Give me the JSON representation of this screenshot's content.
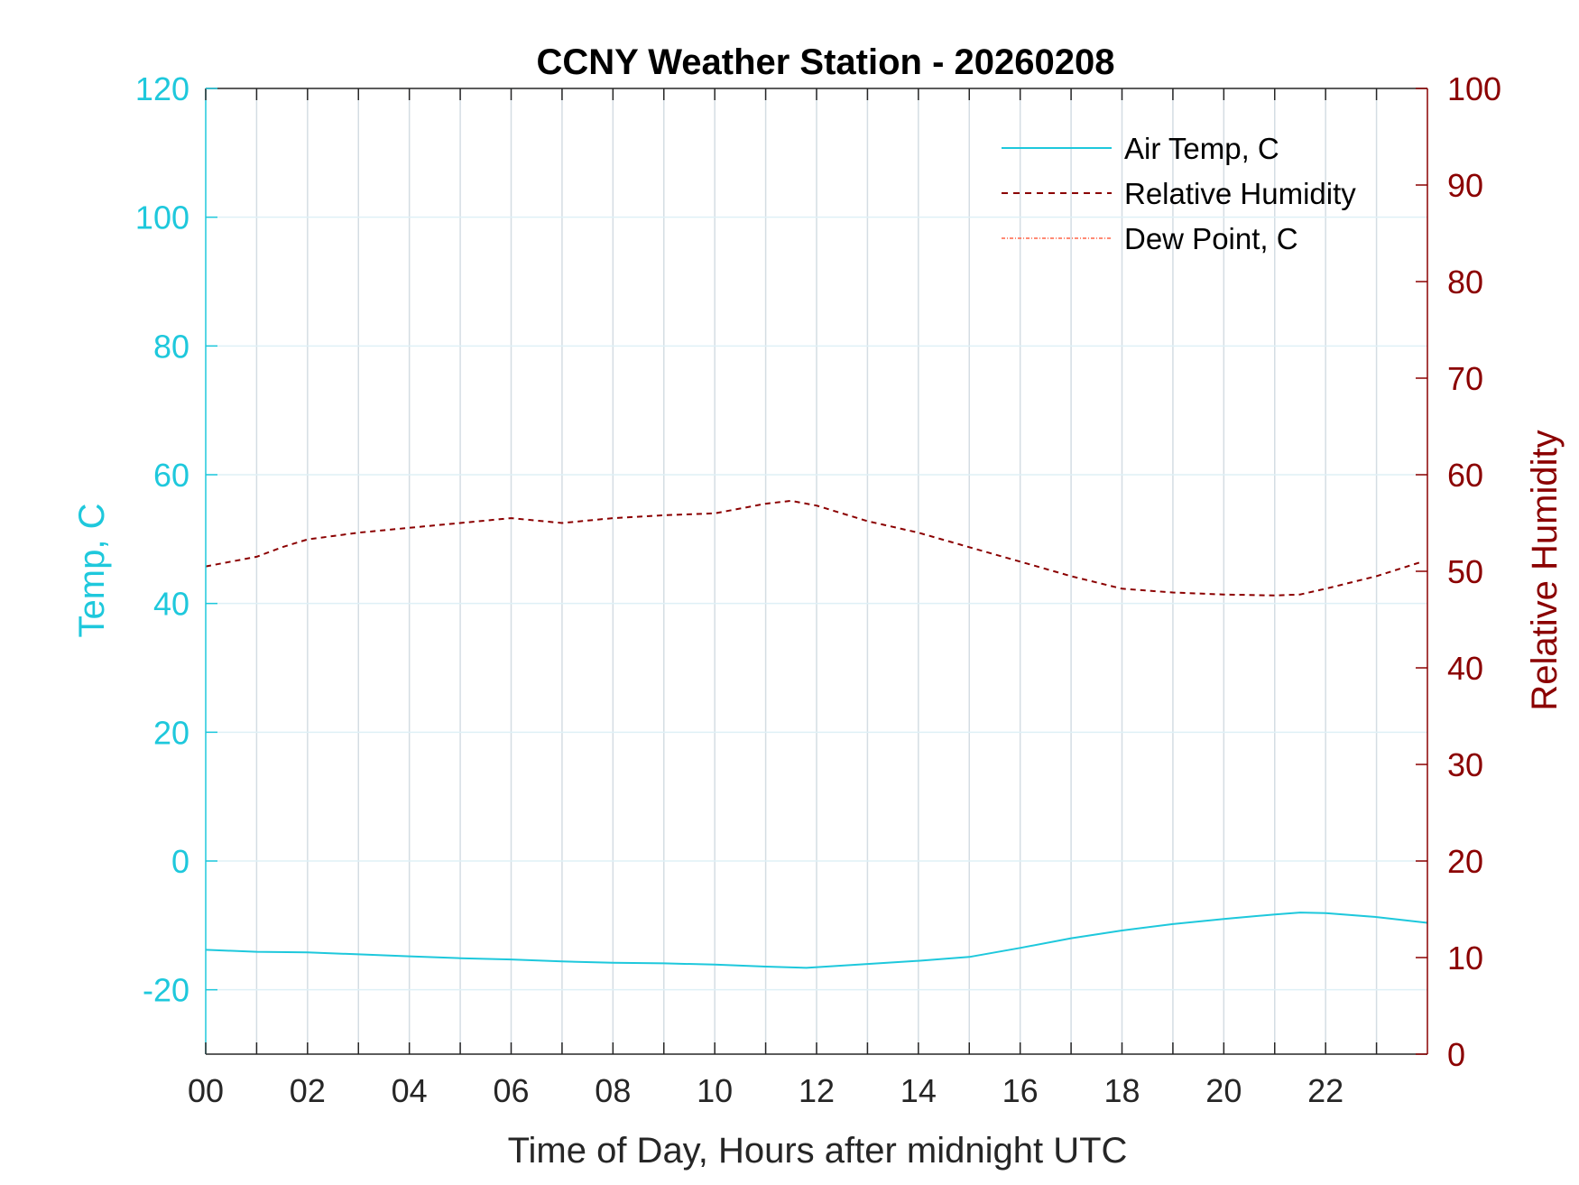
{
  "chart_data": {
    "type": "line",
    "title": "CCNY Weather Station - 20260208",
    "xlabel": "Time of Day, Hours after midnight UTC",
    "ylabel_left": "Temp, C",
    "ylabel_right": "Relative Humidity",
    "xlim": [
      0,
      24
    ],
    "ylim_left": [
      -30,
      120
    ],
    "ylim_right": [
      0,
      100
    ],
    "x_ticks": [
      0,
      2,
      4,
      6,
      8,
      10,
      12,
      14,
      16,
      18,
      20,
      22
    ],
    "x_tick_labels": [
      "00",
      "02",
      "04",
      "06",
      "08",
      "10",
      "12",
      "14",
      "16",
      "18",
      "20",
      "22"
    ],
    "y_left_ticks": [
      120,
      100,
      80,
      60,
      40,
      20,
      0,
      -20
    ],
    "y_left_tick_labels": [
      "120",
      "100",
      "80",
      "60",
      "40",
      "20",
      "0",
      "-20"
    ],
    "y_right_ticks": [
      100,
      90,
      80,
      70,
      60,
      50,
      40,
      30,
      20,
      10,
      0
    ],
    "y_right_tick_labels": [
      "100",
      "90",
      "80",
      "70",
      "60",
      "50",
      "40",
      "30",
      "20",
      "10",
      "0"
    ],
    "grid": true,
    "legend_position": "top-right",
    "colors": {
      "air_temp": "#1ec8dc",
      "relative_humidity": "#8b0000",
      "dew_point": "#ff6347",
      "left_axis": "#1ec8dc",
      "right_axis": "#8b0000",
      "grid": "#c8d8e0"
    },
    "series": [
      {
        "name": "Air Temp, C",
        "axis": "left",
        "style": "solid",
        "x": [
          0,
          1,
          2,
          3,
          4,
          5,
          6,
          7,
          8,
          9,
          10,
          11,
          11.8,
          13,
          14,
          15,
          16,
          17,
          18,
          19,
          20,
          21,
          21.5,
          22,
          23,
          24
        ],
        "values": [
          -13.8,
          -14.1,
          -14.2,
          -14.5,
          -14.8,
          -15.1,
          -15.3,
          -15.6,
          -15.8,
          -15.9,
          -16.1,
          -16.4,
          -16.6,
          -16.0,
          -15.5,
          -14.9,
          -13.5,
          -12.0,
          -10.8,
          -9.8,
          -9.0,
          -8.3,
          -8.0,
          -8.1,
          -8.7,
          -9.6
        ]
      },
      {
        "name": "Relative Humidity",
        "axis": "right",
        "style": "dashed",
        "x": [
          0,
          1,
          1.5,
          2,
          3,
          4,
          5,
          6,
          7,
          8,
          9,
          10,
          11,
          11.5,
          12,
          13,
          14,
          15,
          16,
          17,
          18,
          19,
          20,
          21,
          21.5,
          22,
          23,
          23.9
        ],
        "values": [
          50.5,
          51.5,
          52.5,
          53.3,
          54.0,
          54.5,
          55.0,
          55.5,
          55.0,
          55.5,
          55.8,
          56.0,
          57.0,
          57.3,
          56.8,
          55.2,
          54.0,
          52.5,
          51.0,
          49.5,
          48.2,
          47.8,
          47.6,
          47.5,
          47.6,
          48.2,
          49.5,
          51.0
        ]
      },
      {
        "name": "Dew Point, C",
        "axis": "left",
        "style": "dash-dot",
        "x": [],
        "values": []
      }
    ]
  }
}
